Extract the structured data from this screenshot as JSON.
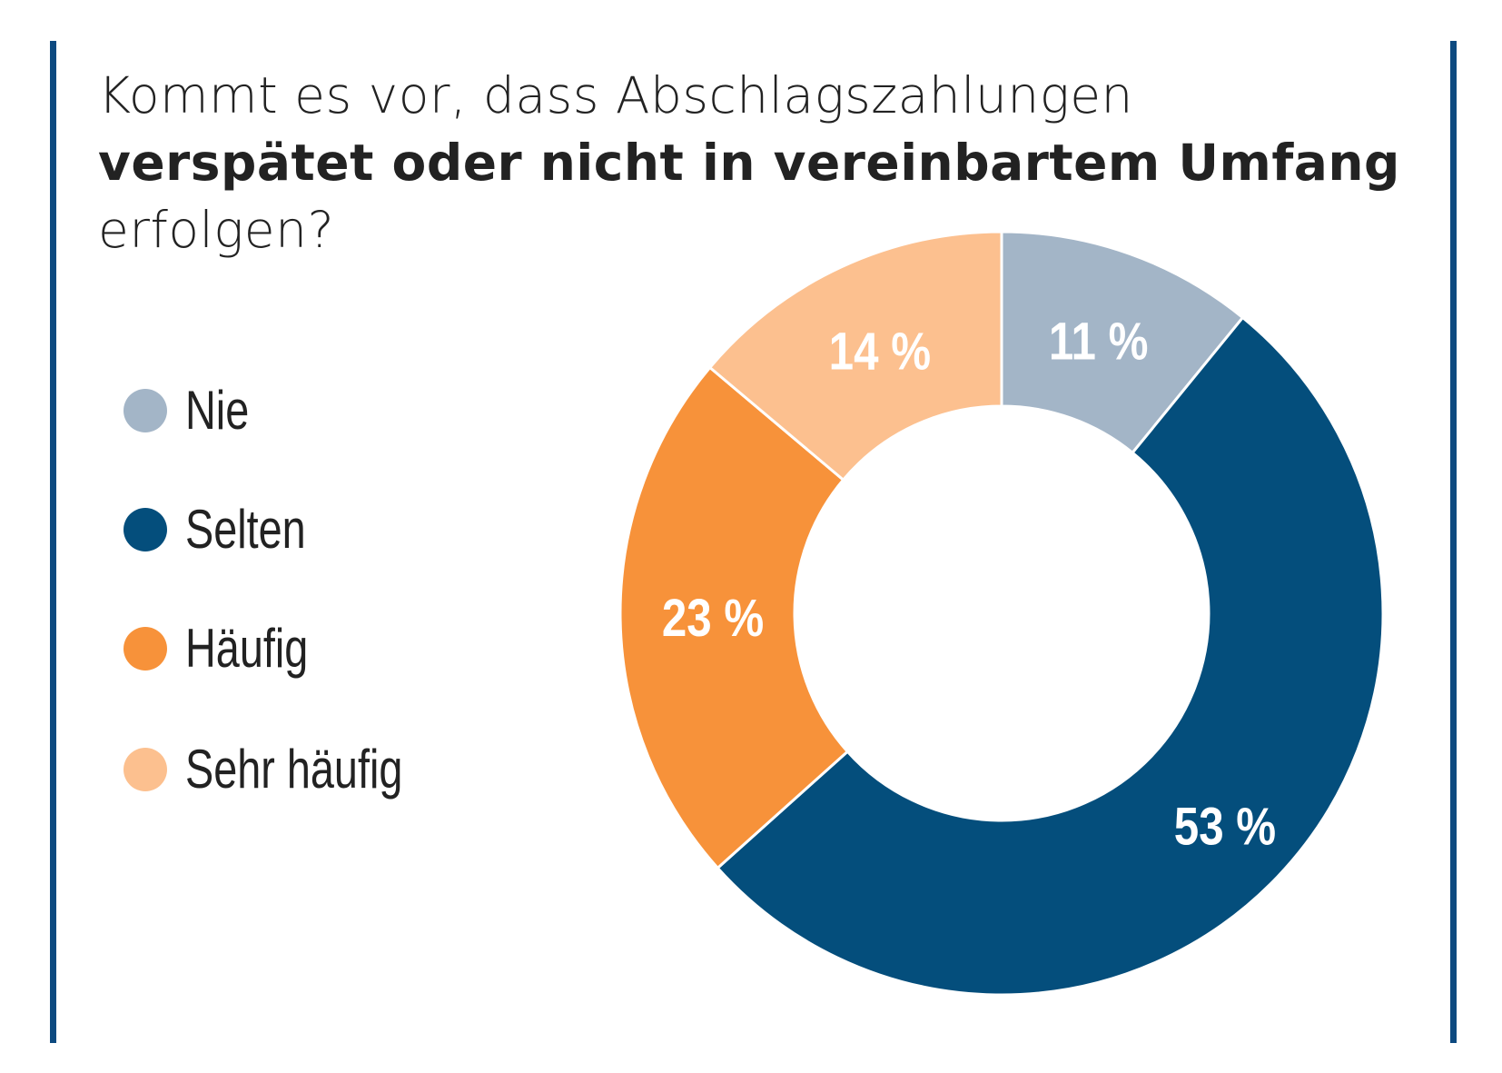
{
  "title": {
    "line1": "Kommt es vor, dass Abschlagszahlungen",
    "line2": "verspätet oder nicht in vereinbartem Umfang",
    "line3": "erfolgen?"
  },
  "colors": {
    "frame": "#0d4a80"
  },
  "chart_data": {
    "type": "pie",
    "variant": "donut",
    "title": "Kommt es vor, dass Abschlagszahlungen verspätet oder nicht in vereinbartem Umfang erfolgen?",
    "legend_position": "left",
    "unit": "%",
    "slices": [
      {
        "name": "Nie",
        "value": 11,
        "label": "11 %",
        "color": "#a3b5c7"
      },
      {
        "name": "Selten",
        "value": 53,
        "label": "53 %",
        "color": "#044e7c"
      },
      {
        "name": "Häufig",
        "value": 23,
        "label": "23 %",
        "color": "#f7923a"
      },
      {
        "name": "Sehr häufig",
        "value": 14,
        "label": "14 %",
        "color": "#fcc08f"
      }
    ]
  }
}
